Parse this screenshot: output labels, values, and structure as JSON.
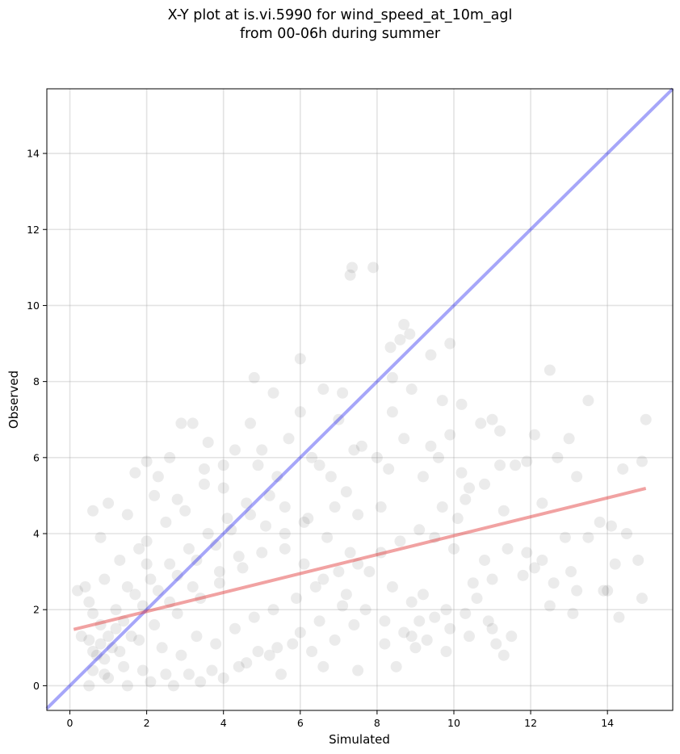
{
  "chart_data": {
    "type": "scatter",
    "title_line1": "X-Y plot at is.vi.5990 for wind_speed_at_10m_agl",
    "title_line2": "from 00-06h during summer",
    "xlabel": "Simulated",
    "ylabel": "Observed",
    "xlim": [
      -0.6,
      15.7
    ],
    "ylim": [
      -0.65,
      15.7
    ],
    "xticks": [
      0,
      2,
      4,
      6,
      8,
      10,
      12,
      14
    ],
    "yticks": [
      0,
      2,
      4,
      6,
      8,
      10,
      12,
      14
    ],
    "grid": true,
    "point_color": "#000000",
    "point_alpha": 0.08,
    "identity_line": {
      "x": [
        -0.6,
        15.7
      ],
      "y": [
        -0.6,
        15.7
      ],
      "color": "#0000ee"
    },
    "fit_line": {
      "x": [
        0.1,
        15.0
      ],
      "y": [
        1.48,
        5.19
      ],
      "color": "#e03030"
    },
    "points": [
      [
        7.3,
        10.8
      ],
      [
        7.35,
        11.0
      ],
      [
        7.9,
        11.0
      ],
      [
        8.7,
        9.5
      ],
      [
        8.85,
        9.25
      ],
      [
        8.6,
        9.1
      ],
      [
        9.9,
        9.0
      ],
      [
        8.35,
        8.9
      ],
      [
        9.4,
        8.7
      ],
      [
        6.0,
        8.6
      ],
      [
        12.5,
        8.3
      ],
      [
        4.8,
        8.1
      ],
      [
        8.4,
        8.1
      ],
      [
        6.6,
        7.8
      ],
      [
        8.9,
        7.8
      ],
      [
        7.1,
        7.7
      ],
      [
        5.3,
        7.7
      ],
      [
        13.5,
        7.5
      ],
      [
        9.7,
        7.5
      ],
      [
        10.2,
        7.4
      ],
      [
        6.0,
        7.2
      ],
      [
        8.4,
        7.2
      ],
      [
        7.0,
        7.0
      ],
      [
        11.0,
        7.0
      ],
      [
        15.0,
        7.0
      ],
      [
        2.9,
        6.9
      ],
      [
        3.2,
        6.9
      ],
      [
        11.2,
        6.7
      ],
      [
        12.1,
        6.6
      ],
      [
        13.0,
        6.5
      ],
      [
        9.9,
        6.6
      ],
      [
        10.7,
        6.9
      ],
      [
        9.4,
        6.3
      ],
      [
        11.9,
        5.9
      ],
      [
        14.9,
        5.9
      ],
      [
        12.7,
        6.0
      ],
      [
        13.2,
        5.5
      ],
      [
        14.4,
        5.7
      ],
      [
        10.4,
        5.2
      ],
      [
        11.6,
        5.8
      ],
      [
        12.3,
        4.8
      ],
      [
        12.9,
        3.9
      ],
      [
        13.5,
        3.9
      ],
      [
        14.5,
        4.0
      ],
      [
        13.8,
        4.3
      ],
      [
        14.1,
        4.2
      ],
      [
        14.2,
        3.2
      ],
      [
        14.8,
        3.3
      ],
      [
        14.9,
        2.3
      ],
      [
        14.3,
        1.8
      ],
      [
        13.1,
        1.9
      ],
      [
        13.2,
        2.5
      ],
      [
        13.9,
        2.5
      ],
      [
        14.0,
        2.5
      ],
      [
        13.05,
        3.0
      ],
      [
        12.5,
        2.1
      ],
      [
        11.1,
        1.1
      ],
      [
        11.5,
        1.3
      ],
      [
        11.3,
        0.8
      ],
      [
        10.9,
        1.7
      ],
      [
        9.8,
        0.9
      ],
      [
        8.5,
        0.5
      ],
      [
        7.5,
        0.4
      ],
      [
        6.6,
        0.5
      ],
      [
        5.5,
        0.3
      ],
      [
        9.0,
        1.0
      ],
      [
        11.0,
        2.8
      ],
      [
        11.9,
        3.5
      ],
      [
        12.3,
        3.3
      ],
      [
        12.6,
        2.7
      ],
      [
        10.5,
        2.7
      ],
      [
        9.2,
        2.4
      ],
      [
        0.3,
        1.3
      ],
      [
        0.2,
        2.5
      ],
      [
        0.4,
        2.6
      ],
      [
        0.6,
        4.6
      ],
      [
        0.8,
        3.9
      ],
      [
        1.0,
        4.8
      ],
      [
        1.7,
        5.6
      ],
      [
        2.0,
        5.9
      ],
      [
        2.3,
        5.5
      ],
      [
        2.6,
        6.0
      ],
      [
        1.5,
        4.5
      ],
      [
        4.3,
        6.2
      ],
      [
        4.7,
        6.9
      ],
      [
        5.0,
        6.2
      ],
      [
        3.6,
        6.4
      ],
      [
        2.8,
        4.9
      ],
      [
        3.5,
        5.3
      ],
      [
        4.0,
        5.2
      ],
      [
        4.9,
        5.8
      ],
      [
        5.7,
        6.5
      ],
      [
        6.3,
        6.0
      ],
      [
        6.8,
        5.5
      ],
      [
        7.6,
        6.3
      ],
      [
        7.2,
        5.1
      ],
      [
        8.0,
        6.0
      ],
      [
        8.3,
        5.7
      ],
      [
        9.2,
        5.5
      ],
      [
        9.7,
        4.7
      ],
      [
        10.3,
        4.9
      ],
      [
        11.3,
        4.6
      ],
      [
        10.1,
        4.4
      ],
      [
        9.5,
        3.9
      ],
      [
        10.0,
        3.6
      ],
      [
        10.8,
        3.3
      ],
      [
        11.4,
        3.6
      ],
      [
        11.8,
        2.9
      ],
      [
        12.1,
        3.1
      ],
      [
        10.6,
        2.3
      ],
      [
        9.8,
        2.0
      ],
      [
        10.3,
        1.9
      ],
      [
        9.1,
        1.7
      ],
      [
        8.9,
        1.3
      ],
      [
        8.2,
        1.1
      ],
      [
        7.4,
        1.6
      ],
      [
        6.9,
        1.2
      ],
      [
        6.3,
        0.9
      ],
      [
        5.8,
        1.1
      ],
      [
        5.2,
        0.8
      ],
      [
        4.6,
        0.6
      ],
      [
        4.0,
        0.2
      ],
      [
        3.4,
        0.1
      ],
      [
        2.7,
        0.0
      ],
      [
        2.1,
        0.1
      ],
      [
        1.5,
        0.0
      ],
      [
        1.0,
        0.2
      ],
      [
        0.5,
        0.0
      ],
      [
        0.6,
        0.4
      ],
      [
        0.9,
        0.7
      ],
      [
        1.3,
        0.9
      ],
      [
        1.8,
        1.2
      ],
      [
        2.4,
        1.0
      ],
      [
        2.9,
        0.8
      ],
      [
        3.3,
        1.3
      ],
      [
        3.8,
        1.1
      ],
      [
        4.3,
        1.5
      ],
      [
        4.8,
        1.8
      ],
      [
        5.3,
        2.0
      ],
      [
        5.9,
        2.3
      ],
      [
        6.4,
        2.6
      ],
      [
        7.0,
        3.0
      ],
      [
        7.5,
        3.2
      ],
      [
        8.1,
        3.5
      ],
      [
        8.6,
        3.8
      ],
      [
        9.1,
        4.1
      ],
      [
        6.2,
        4.4
      ],
      [
        5.6,
        4.0
      ],
      [
        5.0,
        3.5
      ],
      [
        4.5,
        3.1
      ],
      [
        3.9,
        2.7
      ],
      [
        3.4,
        2.3
      ],
      [
        2.8,
        1.9
      ],
      [
        2.2,
        1.6
      ],
      [
        1.6,
        1.3
      ],
      [
        1.1,
        1.0
      ],
      [
        0.7,
        0.8
      ],
      [
        0.5,
        1.2
      ],
      [
        0.8,
        1.6
      ],
      [
        1.2,
        2.0
      ],
      [
        1.7,
        2.4
      ],
      [
        2.1,
        2.8
      ],
      [
        2.6,
        3.2
      ],
      [
        3.1,
        3.6
      ],
      [
        3.6,
        4.0
      ],
      [
        4.1,
        4.4
      ],
      [
        4.6,
        4.8
      ],
      [
        5.2,
        5.0
      ],
      [
        5.6,
        4.7
      ],
      [
        6.1,
        4.3
      ],
      [
        6.7,
        3.9
      ],
      [
        7.3,
        3.5
      ],
      [
        7.8,
        3.0
      ],
      [
        8.4,
        2.6
      ],
      [
        8.9,
        2.2
      ],
      [
        9.5,
        1.8
      ],
      [
        7.1,
        2.1
      ],
      [
        6.5,
        1.7
      ],
      [
        6.0,
        1.4
      ],
      [
        5.4,
        1.0
      ],
      [
        4.9,
        0.9
      ],
      [
        4.4,
        0.5
      ],
      [
        3.7,
        0.4
      ],
      [
        3.1,
        0.3
      ],
      [
        2.5,
        0.3
      ],
      [
        1.9,
        0.4
      ],
      [
        1.4,
        0.5
      ],
      [
        0.9,
        0.3
      ],
      [
        0.6,
        0.9
      ],
      [
        1.0,
        1.3
      ],
      [
        1.4,
        1.7
      ],
      [
        1.9,
        2.1
      ],
      [
        2.3,
        2.5
      ],
      [
        2.8,
        2.9
      ],
      [
        3.3,
        3.3
      ],
      [
        3.8,
        3.7
      ],
      [
        4.2,
        4.1
      ],
      [
        4.7,
        4.5
      ],
      [
        5.1,
        4.2
      ],
      [
        5.6,
        3.6
      ],
      [
        6.1,
        3.2
      ],
      [
        6.6,
        2.8
      ],
      [
        7.2,
        2.4
      ],
      [
        7.7,
        2.0
      ],
      [
        8.2,
        1.7
      ],
      [
        8.7,
        1.4
      ],
      [
        9.3,
        1.2
      ],
      [
        9.9,
        1.5
      ],
      [
        10.4,
        1.3
      ],
      [
        11.0,
        1.5
      ],
      [
        2.0,
        3.8
      ],
      [
        2.5,
        4.3
      ],
      [
        3.0,
        4.6
      ],
      [
        1.3,
        3.3
      ],
      [
        1.8,
        3.6
      ],
      [
        0.9,
        2.8
      ],
      [
        0.5,
        2.2
      ],
      [
        3.5,
        5.7
      ],
      [
        4.0,
        5.8
      ],
      [
        2.2,
        5.0
      ],
      [
        5.4,
        5.5
      ],
      [
        6.5,
        5.8
      ],
      [
        7.4,
        6.2
      ],
      [
        8.7,
        6.5
      ],
      [
        9.6,
        6.0
      ],
      [
        10.2,
        5.6
      ],
      [
        10.8,
        5.3
      ],
      [
        11.2,
        5.8
      ],
      [
        8.1,
        4.7
      ],
      [
        7.5,
        4.5
      ],
      [
        6.9,
        4.7
      ],
      [
        4.4,
        3.4
      ],
      [
        3.9,
        3.0
      ],
      [
        3.2,
        2.6
      ],
      [
        2.6,
        2.2
      ],
      [
        1.2,
        1.5
      ],
      [
        0.8,
        1.1
      ],
      [
        0.6,
        1.9
      ],
      [
        1.5,
        2.6
      ],
      [
        2.0,
        3.2
      ]
    ]
  }
}
